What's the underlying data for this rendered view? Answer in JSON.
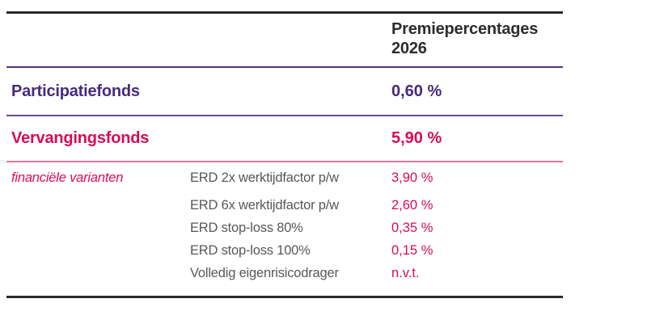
{
  "colors": {
    "line_dark": "#2b2a29",
    "purple_text": "#472a7d",
    "purple_line": "#55357f",
    "pink_text": "#d90b57",
    "pink_line": "#ee6f9b",
    "gray_text": "#57585a",
    "header_text": "#2d2c2b"
  },
  "header": {
    "value_column_title": "Premiepercentages 2026"
  },
  "funds": [
    {
      "label": "Participatiefonds",
      "value": "0,60 %"
    },
    {
      "label": "Vervangingsfonds",
      "value": "5,90 %"
    }
  ],
  "variants": {
    "label": "financiële varianten",
    "items": [
      {
        "name": "ERD 2x werktijdfactor p/w",
        "value": "3,90 %"
      },
      {
        "name": "ERD 6x werktijdfactor p/w",
        "value": "2,60 %"
      },
      {
        "name": "ERD stop-loss 80%",
        "value": "0,35 %"
      },
      {
        "name": "ERD stop-loss 100%",
        "value": "0,15 %"
      },
      {
        "name": "Volledig eigenrisicodrager",
        "value": "n.v.t."
      }
    ]
  }
}
